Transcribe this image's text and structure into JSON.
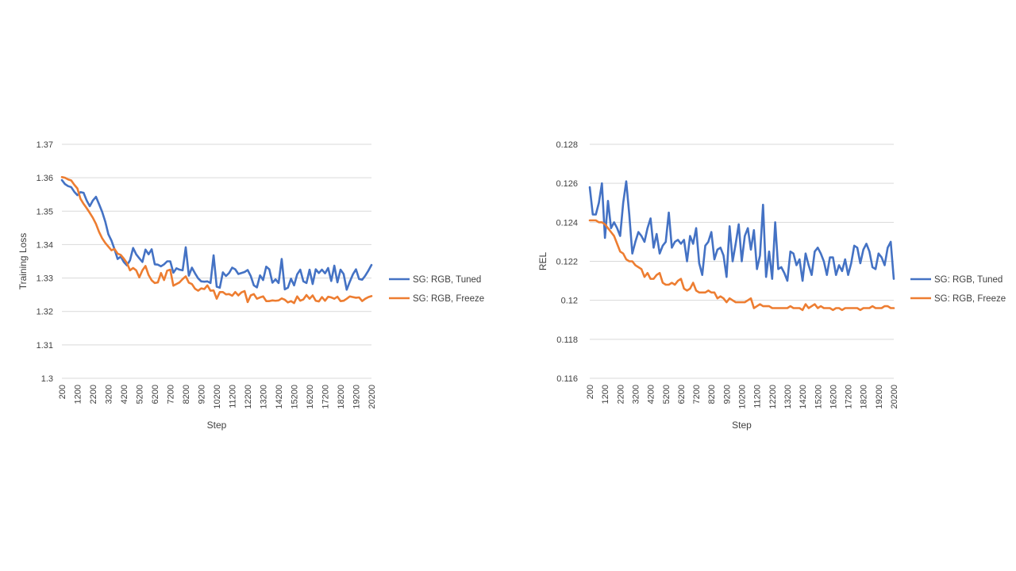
{
  "chart_data": [
    {
      "type": "line",
      "title": "",
      "xlabel": "Step",
      "ylabel": "Training Loss",
      "ylim": [
        1.3,
        1.37
      ],
      "yticks": [
        "1.3",
        "1.31",
        "1.32",
        "1.33",
        "1.34",
        "1.35",
        "1.36",
        "1.37"
      ],
      "xlim": [
        200,
        20200
      ],
      "xticks": [
        "200",
        "1200",
        "2200",
        "3200",
        "4200",
        "5200",
        "6200",
        "7200",
        "8200",
        "9200",
        "10200",
        "11200",
        "12200",
        "13200",
        "14200",
        "15200",
        "16200",
        "17200",
        "18200",
        "19200",
        "20200"
      ],
      "grid": true,
      "legend": "right",
      "x_step": 200,
      "series": [
        {
          "name": "SG: RGB, Tuned",
          "color": "#4472c4",
          "values": [
            1.3593,
            1.3581,
            1.3575,
            1.3572,
            1.3558,
            1.3548,
            1.3557,
            1.3555,
            1.3532,
            1.3515,
            1.3532,
            1.3543,
            1.3521,
            1.3498,
            1.3469,
            1.3431,
            1.3412,
            1.3386,
            1.3357,
            1.3364,
            1.3348,
            1.3338,
            1.3353,
            1.339,
            1.3371,
            1.3359,
            1.3348,
            1.3385,
            1.3371,
            1.3386,
            1.3341,
            1.334,
            1.3335,
            1.3341,
            1.335,
            1.335,
            1.3316,
            1.3329,
            1.3325,
            1.3323,
            1.3392,
            1.3307,
            1.3331,
            1.3314,
            1.3299,
            1.329,
            1.3289,
            1.329,
            1.3285,
            1.3368,
            1.3274,
            1.3271,
            1.3317,
            1.3306,
            1.3315,
            1.3331,
            1.3326,
            1.3312,
            1.3315,
            1.3318,
            1.3324,
            1.3306,
            1.3278,
            1.3272,
            1.3308,
            1.3294,
            1.3334,
            1.3326,
            1.3286,
            1.3296,
            1.3285,
            1.3357,
            1.3266,
            1.3271,
            1.3298,
            1.3278,
            1.3311,
            1.3325,
            1.329,
            1.3285,
            1.3325,
            1.3282,
            1.3326,
            1.3315,
            1.3325,
            1.3314,
            1.333,
            1.3291,
            1.3337,
            1.3287,
            1.3325,
            1.3312,
            1.3265,
            1.3289,
            1.3311,
            1.3326,
            1.3297,
            1.3295,
            1.3307,
            1.3322,
            1.3339
          ]
        },
        {
          "name": "SG: RGB, Freeze",
          "color": "#ed7d31",
          "values": [
            1.3602,
            1.36,
            1.3595,
            1.3592,
            1.3579,
            1.3568,
            1.3537,
            1.3522,
            1.3509,
            1.3495,
            1.348,
            1.3462,
            1.3438,
            1.3419,
            1.3405,
            1.3394,
            1.3383,
            1.3387,
            1.3373,
            1.3369,
            1.3358,
            1.3345,
            1.3323,
            1.333,
            1.3323,
            1.3302,
            1.3323,
            1.3336,
            1.3309,
            1.3293,
            1.3285,
            1.3287,
            1.3315,
            1.3294,
            1.3322,
            1.3325,
            1.3277,
            1.3282,
            1.3287,
            1.3297,
            1.3305,
            1.3286,
            1.3282,
            1.3268,
            1.3262,
            1.3269,
            1.3267,
            1.3278,
            1.3262,
            1.3263,
            1.3238,
            1.3258,
            1.3258,
            1.3251,
            1.3252,
            1.3247,
            1.3258,
            1.3248,
            1.3257,
            1.3261,
            1.3228,
            1.3248,
            1.3252,
            1.3238,
            1.3242,
            1.3245,
            1.3231,
            1.3231,
            1.3233,
            1.3232,
            1.3233,
            1.3239,
            1.3235,
            1.3227,
            1.3231,
            1.3225,
            1.3245,
            1.3232,
            1.3236,
            1.3249,
            1.3238,
            1.3248,
            1.3232,
            1.323,
            1.3243,
            1.3232,
            1.3244,
            1.3242,
            1.3238,
            1.3244,
            1.3231,
            1.3232,
            1.3238,
            1.3245,
            1.3243,
            1.3241,
            1.3242,
            1.3231,
            1.3238,
            1.3243,
            1.3246
          ]
        }
      ]
    },
    {
      "type": "line",
      "title": "",
      "xlabel": "Step",
      "ylabel": "REL",
      "ylim": [
        0.116,
        0.128
      ],
      "yticks": [
        "0.116",
        "0.118",
        "0.12",
        "0.122",
        "0.124",
        "0.126",
        "0.128"
      ],
      "xlim": [
        200,
        20200
      ],
      "xticks": [
        "200",
        "1200",
        "2200",
        "3200",
        "4200",
        "5200",
        "6200",
        "7200",
        "8200",
        "9200",
        "10200",
        "11200",
        "12200",
        "13200",
        "14200",
        "15200",
        "16200",
        "17200",
        "18200",
        "19200",
        "20200"
      ],
      "grid": true,
      "legend": "right",
      "x_step": 200,
      "series": [
        {
          "name": "SG: RGB, Tuned",
          "color": "#4472c4",
          "values": [
            0.1258,
            0.1244,
            0.1244,
            0.125,
            0.126,
            0.1232,
            0.1251,
            0.1237,
            0.124,
            0.1237,
            0.1233,
            0.125,
            0.1261,
            0.1244,
            0.1224,
            0.123,
            0.1235,
            0.1233,
            0.123,
            0.1237,
            0.1242,
            0.1227,
            0.1234,
            0.1224,
            0.1228,
            0.123,
            0.1245,
            0.1227,
            0.123,
            0.1231,
            0.1229,
            0.1231,
            0.122,
            0.1233,
            0.1229,
            0.1237,
            0.1219,
            0.1213,
            0.1228,
            0.123,
            0.1235,
            0.1221,
            0.1226,
            0.1227,
            0.1223,
            0.1212,
            0.1238,
            0.122,
            0.1229,
            0.1239,
            0.122,
            0.1233,
            0.1237,
            0.1226,
            0.1236,
            0.1216,
            0.1223,
            0.1249,
            0.1212,
            0.1225,
            0.1211,
            0.124,
            0.1216,
            0.1217,
            0.1214,
            0.121,
            0.1225,
            0.1224,
            0.1218,
            0.1221,
            0.121,
            0.1224,
            0.1218,
            0.1213,
            0.1225,
            0.1227,
            0.1224,
            0.122,
            0.1213,
            0.1222,
            0.1222,
            0.1213,
            0.1218,
            0.1215,
            0.1221,
            0.1213,
            0.1219,
            0.1228,
            0.1227,
            0.1219,
            0.1226,
            0.1229,
            0.1225,
            0.1217,
            0.1216,
            0.1224,
            0.1222,
            0.1218,
            0.1227,
            0.123,
            0.1211
          ]
        },
        {
          "name": "SG: RGB, Freeze",
          "color": "#ed7d31",
          "values": [
            0.1241,
            0.1241,
            0.1241,
            0.124,
            0.124,
            0.1239,
            0.1237,
            0.1235,
            0.1233,
            0.1229,
            0.1225,
            0.1224,
            0.1221,
            0.122,
            0.122,
            0.1218,
            0.1217,
            0.1216,
            0.1212,
            0.1214,
            0.1211,
            0.1211,
            0.1213,
            0.1214,
            0.1209,
            0.1208,
            0.1208,
            0.1209,
            0.1208,
            0.121,
            0.1211,
            0.1206,
            0.1205,
            0.1206,
            0.1209,
            0.1205,
            0.1204,
            0.1204,
            0.1204,
            0.1205,
            0.1204,
            0.1204,
            0.1201,
            0.1202,
            0.1201,
            0.1199,
            0.1201,
            0.12,
            0.1199,
            0.1199,
            0.1199,
            0.1199,
            0.12,
            0.1201,
            0.1196,
            0.1197,
            0.1198,
            0.1197,
            0.1197,
            0.1197,
            0.1196,
            0.1196,
            0.1196,
            0.1196,
            0.1196,
            0.1196,
            0.1197,
            0.1196,
            0.1196,
            0.1196,
            0.1195,
            0.1198,
            0.1196,
            0.1197,
            0.1198,
            0.1196,
            0.1197,
            0.1196,
            0.1196,
            0.1196,
            0.1195,
            0.1196,
            0.1196,
            0.1195,
            0.1196,
            0.1196,
            0.1196,
            0.1196,
            0.1196,
            0.1195,
            0.1196,
            0.1196,
            0.1196,
            0.1197,
            0.1196,
            0.1196,
            0.1196,
            0.1197,
            0.1197,
            0.1196,
            0.1196
          ]
        }
      ]
    }
  ]
}
